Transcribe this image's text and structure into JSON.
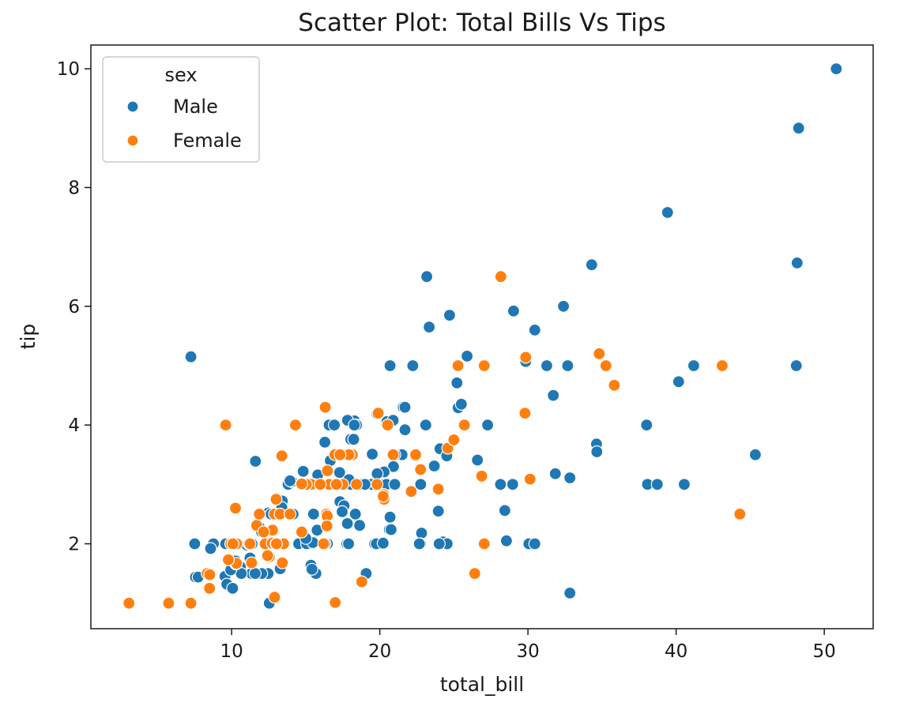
{
  "chart_data": {
    "type": "scatter",
    "title": "Scatter Plot: Total Bills Vs Tips",
    "xlabel": "total_bill",
    "ylabel": "tip",
    "xlim": [
      0.5,
      53.3
    ],
    "ylim": [
      0.57,
      10.4
    ],
    "xticks": [
      10,
      20,
      30,
      40,
      50
    ],
    "yticks": [
      2,
      4,
      6,
      8,
      10
    ],
    "grid": false,
    "legend": {
      "title": "sex",
      "placement": "top-left"
    },
    "series": [
      {
        "name": "Male",
        "color": "#1f77b4",
        "points": [
          [
            7.25,
            5.15
          ],
          [
            50.81,
            10.0
          ],
          [
            48.27,
            9.0
          ],
          [
            39.42,
            7.58
          ],
          [
            48.17,
            6.73
          ],
          [
            34.3,
            6.7
          ],
          [
            23.17,
            6.5
          ],
          [
            32.4,
            6.0
          ],
          [
            28.97,
            5.92
          ],
          [
            24.71,
            5.85
          ],
          [
            23.33,
            5.65
          ],
          [
            30.46,
            5.6
          ],
          [
            25.89,
            5.16
          ],
          [
            29.85,
            5.07
          ],
          [
            20.69,
            5.0
          ],
          [
            22.23,
            5.0
          ],
          [
            31.27,
            5.0
          ],
          [
            32.68,
            5.0
          ],
          [
            41.19,
            5.0
          ],
          [
            48.11,
            5.0
          ],
          [
            40.17,
            4.73
          ],
          [
            25.21,
            4.71
          ],
          [
            31.71,
            4.5
          ],
          [
            25.29,
            4.29
          ],
          [
            25.5,
            4.35
          ],
          [
            21.58,
            4.3
          ],
          [
            18.29,
            4.07
          ],
          [
            17.82,
            4.08
          ],
          [
            18.43,
            4.0
          ],
          [
            16.58,
            4.0
          ],
          [
            16.93,
            4.0
          ],
          [
            20.49,
            4.06
          ],
          [
            20.9,
            4.08
          ],
          [
            23.1,
            4.0
          ],
          [
            27.28,
            4.0
          ],
          [
            38.01,
            4.0
          ],
          [
            21.7,
            3.92
          ],
          [
            18.04,
            3.76
          ],
          [
            16.29,
            3.71
          ],
          [
            34.63,
            3.68
          ],
          [
            34.65,
            3.55
          ],
          [
            24.06,
            3.6
          ],
          [
            19.49,
            3.51
          ],
          [
            21.16,
            3.5
          ],
          [
            24.52,
            3.48
          ],
          [
            45.35,
            3.5
          ],
          [
            26.59,
            3.41
          ],
          [
            11.61,
            3.39
          ],
          [
            16.66,
            3.4
          ],
          [
            20.92,
            3.3
          ],
          [
            17.29,
            3.2
          ],
          [
            20.29,
            3.21
          ],
          [
            23.68,
            3.31
          ],
          [
            19.82,
            3.18
          ],
          [
            15.81,
            3.16
          ],
          [
            14.83,
            3.22
          ],
          [
            31.85,
            3.18
          ],
          [
            32.83,
            3.11
          ],
          [
            20.27,
            3.0
          ],
          [
            19.44,
            3.0
          ],
          [
            13.81,
            3.0
          ],
          [
            14.07,
            3.05
          ],
          [
            15.98,
            3.0
          ],
          [
            17.81,
            3.0
          ],
          [
            18.71,
            3.0
          ],
          [
            20.45,
            3.0
          ],
          [
            21.01,
            3.0
          ],
          [
            22.76,
            3.0
          ],
          [
            28.15,
            3.0
          ],
          [
            28.97,
            3.0
          ],
          [
            38.07,
            3.0
          ],
          [
            38.73,
            3.0
          ],
          [
            40.55,
            3.0
          ],
          [
            20.29,
            2.75
          ],
          [
            17.31,
            2.71
          ],
          [
            13.42,
            2.72
          ],
          [
            11.87,
            2.28
          ],
          [
            12.68,
            2.5
          ],
          [
            14.07,
            2.5
          ],
          [
            18.35,
            2.5
          ],
          [
            15.53,
            2.5
          ],
          [
            17.59,
            2.64
          ],
          [
            23.95,
            2.55
          ],
          [
            28.44,
            2.56
          ],
          [
            9.55,
            1.45
          ],
          [
            10.27,
            1.71
          ],
          [
            7.56,
            1.44
          ],
          [
            7.74,
            1.44
          ],
          [
            9.68,
            1.32
          ],
          [
            9.94,
            1.56
          ],
          [
            8.51,
            1.25
          ],
          [
            10.07,
            1.25
          ],
          [
            10.59,
            1.61
          ],
          [
            11.02,
            1.98
          ],
          [
            12.46,
            1.5
          ],
          [
            12.03,
            1.5
          ],
          [
            13.28,
            1.58
          ],
          [
            15.36,
            1.64
          ],
          [
            15.69,
            1.5
          ],
          [
            19.08,
            1.5
          ],
          [
            12.54,
            1.0
          ],
          [
            32.83,
            1.17
          ],
          [
            7.51,
            2.0
          ],
          [
            8.77,
            2.0
          ],
          [
            9.6,
            2.0
          ],
          [
            10.33,
            2.0
          ],
          [
            13.37,
            2.0
          ],
          [
            14.52,
            2.0
          ],
          [
            15.06,
            2.0
          ],
          [
            15.48,
            2.02
          ],
          [
            16.47,
            2.0
          ],
          [
            17.78,
            2.0
          ],
          [
            19.65,
            2.0
          ],
          [
            20.08,
            2.0
          ],
          [
            22.82,
            2.18
          ],
          [
            22.75,
            2.0
          ],
          [
            24.27,
            2.03
          ],
          [
            24.55,
            2.0
          ],
          [
            28.55,
            2.05
          ],
          [
            30.06,
            2.0
          ],
          [
            30.46,
            2.0
          ],
          [
            12.02,
            2.2
          ],
          [
            15.77,
            2.23
          ],
          [
            20.65,
            2.24
          ],
          [
            18.64,
            2.31
          ],
          [
            11.35,
            1.5
          ],
          [
            10.65,
            1.5
          ],
          [
            8.58,
            1.92
          ],
          [
            9.78,
            1.73
          ],
          [
            11.24,
            1.76
          ],
          [
            13.0,
            2.0
          ],
          [
            18.04,
            3.0
          ],
          [
            17.89,
            2.0
          ],
          [
            17.46,
            2.54
          ],
          [
            21.5,
            3.5
          ],
          [
            19.0,
            3.0
          ],
          [
            14.15,
            2.5
          ],
          [
            16.0,
            3.0
          ],
          [
            22.67,
            2.0
          ],
          [
            17.92,
            3.08
          ],
          [
            13.94,
            3.06
          ],
          [
            12.48,
            2.52
          ],
          [
            15.42,
            1.57
          ],
          [
            18.24,
            3.76
          ],
          [
            16.31,
            2.0
          ],
          [
            19.77,
            2.0
          ],
          [
            9.94,
            1.56
          ],
          [
            24.01,
            2.0
          ],
          [
            17.81,
            2.34
          ],
          [
            13.51,
            2.0
          ],
          [
            15.01,
            2.09
          ],
          [
            20.23,
            2.01
          ],
          [
            18.28,
            4.0
          ],
          [
            11.38,
            2.0
          ],
          [
            20.69,
            2.45
          ],
          [
            13.39,
            2.61
          ],
          [
            21.7,
            4.3
          ],
          [
            20.76,
            2.24
          ],
          [
            17.47,
            3.5
          ],
          [
            19.81,
            4.19
          ],
          [
            11.59,
            1.5
          ],
          [
            21.01,
            3.5
          ],
          [
            12.66,
            2.5
          ],
          [
            29.03,
            5.92
          ],
          [
            15.53,
            3.0
          ]
        ]
      },
      {
        "name": "Female",
        "color": "#ff7f0e",
        "points": [
          [
            3.07,
            1.0
          ],
          [
            5.75,
            1.0
          ],
          [
            7.25,
            1.0
          ],
          [
            16.99,
            1.01
          ],
          [
            12.9,
            1.1
          ],
          [
            18.78,
            1.36
          ],
          [
            8.35,
            1.5
          ],
          [
            8.52,
            1.48
          ],
          [
            26.41,
            1.5
          ],
          [
            8.51,
            1.25
          ],
          [
            11.35,
            1.68
          ],
          [
            10.29,
            1.66
          ],
          [
            10.33,
            1.67
          ],
          [
            9.78,
            1.73
          ],
          [
            12.54,
            1.78
          ],
          [
            13.42,
            1.68
          ],
          [
            9.94,
            2.0
          ],
          [
            10.34,
            2.0
          ],
          [
            11.17,
            2.0
          ],
          [
            12.26,
            2.0
          ],
          [
            12.74,
            2.01
          ],
          [
            13.13,
            2.0
          ],
          [
            13.0,
            2.0
          ],
          [
            14.73,
            2.2
          ],
          [
            15.38,
            3.0
          ],
          [
            16.21,
            2.0
          ],
          [
            16.4,
            2.5
          ],
          [
            16.45,
            2.47
          ],
          [
            16.43,
            2.3
          ],
          [
            27.05,
            2.0
          ],
          [
            44.3,
            2.5
          ],
          [
            11.69,
            2.31
          ],
          [
            12.76,
            2.23
          ],
          [
            12.9,
            2.5
          ],
          [
            13.27,
            2.5
          ],
          [
            13.51,
            2.0
          ],
          [
            12.43,
            1.8
          ],
          [
            10.26,
            2.6
          ],
          [
            11.87,
            2.5
          ],
          [
            13.0,
            2.75
          ],
          [
            14.31,
            4.0
          ],
          [
            9.6,
            4.0
          ],
          [
            16.32,
            4.3
          ],
          [
            19.89,
            4.2
          ],
          [
            20.9,
            3.5
          ],
          [
            18.15,
            3.5
          ],
          [
            20.29,
            2.75
          ],
          [
            20.27,
            2.83
          ],
          [
            20.53,
            4.0
          ],
          [
            22.12,
            2.88
          ],
          [
            22.42,
            3.48
          ],
          [
            22.75,
            3.25
          ],
          [
            23.95,
            2.92
          ],
          [
            24.59,
            3.61
          ],
          [
            25.0,
            3.75
          ],
          [
            25.28,
            5.0
          ],
          [
            25.71,
            4.0
          ],
          [
            26.88,
            3.12
          ],
          [
            27.05,
            5.0
          ],
          [
            28.17,
            6.5
          ],
          [
            29.8,
            4.2
          ],
          [
            29.85,
            5.14
          ],
          [
            30.14,
            3.09
          ],
          [
            34.81,
            5.2
          ],
          [
            35.26,
            5.0
          ],
          [
            35.83,
            4.67
          ],
          [
            43.11,
            5.0
          ],
          [
            13.39,
            3.48
          ],
          [
            14.78,
            3.02
          ],
          [
            15.04,
            3.0
          ],
          [
            16.47,
            3.23
          ],
          [
            17.26,
            3.5
          ],
          [
            17.51,
            3.0
          ],
          [
            17.92,
            3.5
          ],
          [
            18.43,
            3.0
          ],
          [
            19.81,
            3.0
          ],
          [
            20.23,
            2.8
          ],
          [
            26.88,
            3.14
          ],
          [
            16.58,
            3.0
          ],
          [
            15.98,
            3.0
          ],
          [
            16.97,
            3.5
          ],
          [
            17.07,
            3.0
          ],
          [
            17.31,
            3.5
          ],
          [
            13.03,
            2.0
          ],
          [
            13.94,
            2.5
          ],
          [
            12.16,
            2.2
          ],
          [
            14.73,
            3.01
          ],
          [
            10.09,
            2.0
          ],
          [
            11.24,
            2.0
          ],
          [
            22.42,
            3.5
          ]
        ]
      }
    ]
  }
}
